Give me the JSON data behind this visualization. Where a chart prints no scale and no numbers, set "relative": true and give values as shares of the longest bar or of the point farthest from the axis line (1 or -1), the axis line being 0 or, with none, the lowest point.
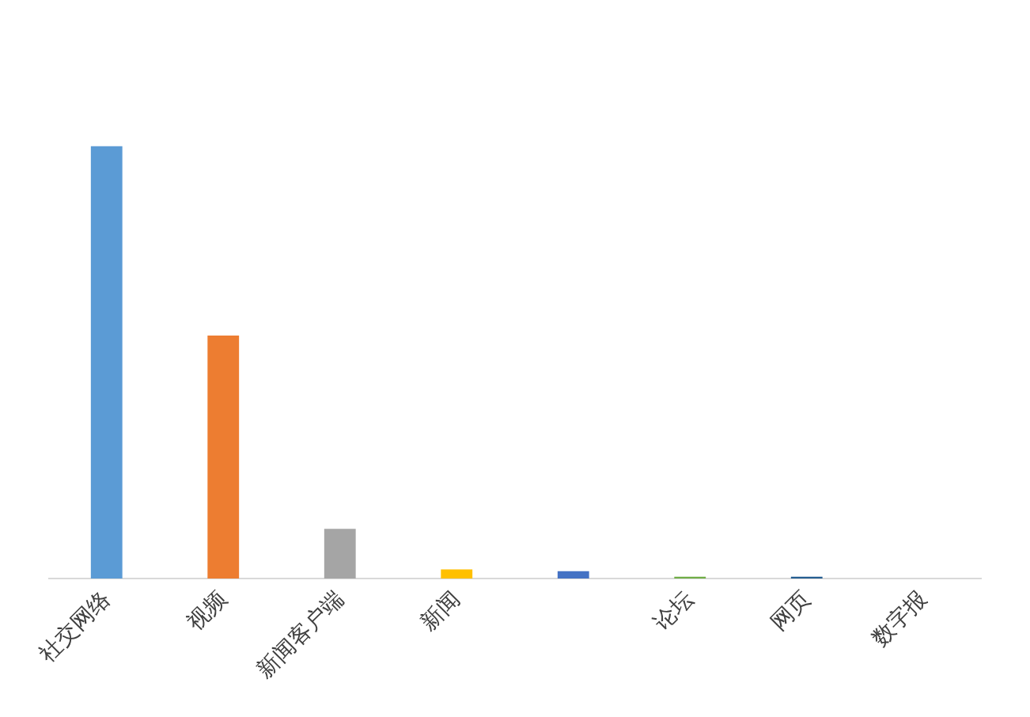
{
  "chart_data": {
    "type": "bar",
    "relative": true,
    "categories": [
      "社交网络",
      "视频",
      "新闻客户端",
      "新闻",
      null,
      "论坛",
      "网页",
      "数字报"
    ],
    "values": [
      1,
      0.562,
      0.115,
      0.021,
      0.017,
      0.004,
      0.004,
      0
    ],
    "colors": [
      "#5b9bd5",
      "#ed7d31",
      "#a5a5a5",
      "#ffc000",
      "#4472c4",
      "#70ad47",
      "#255e91",
      "#9e480e"
    ],
    "grid": false
  }
}
